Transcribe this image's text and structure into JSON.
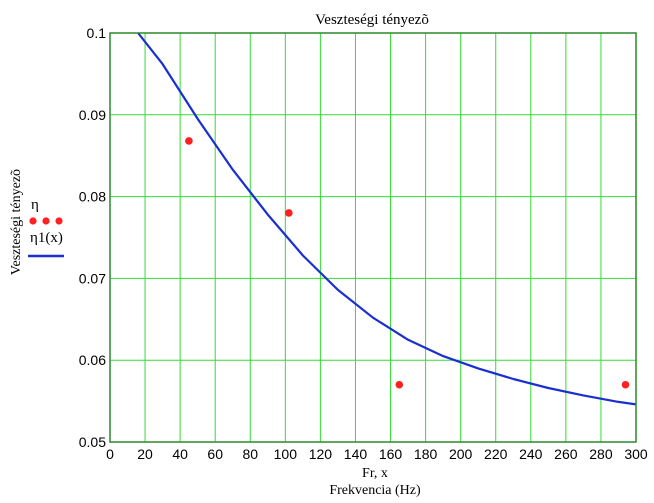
{
  "chart_data": {
    "type": "scatter",
    "title": "Veszteségi tényezõ",
    "ylabel": "Veszteségi tényezõ",
    "xlabel_lines": [
      "Fr, x",
      "Frekvencia (Hz)"
    ],
    "xlim": [
      0,
      300
    ],
    "ylim": [
      0.05,
      0.1
    ],
    "x_ticks": [
      0,
      20,
      40,
      60,
      80,
      100,
      120,
      140,
      160,
      180,
      200,
      220,
      240,
      260,
      280,
      300
    ],
    "x_tick_labels": [
      "0",
      "20",
      "40",
      "60",
      "80",
      "100",
      "120",
      "140",
      "160",
      "180",
      "200",
      "220",
      "240",
      "260",
      "280",
      "300"
    ],
    "y_ticks": [
      0.05,
      0.06,
      0.07,
      0.08,
      0.09,
      0.1
    ],
    "y_tick_labels": [
      "0.05",
      "0.06",
      "0.07",
      "0.08",
      "0.09",
      "0.1"
    ],
    "grid": true,
    "grid_color": "#33dd33",
    "axis_color": "#2a8a2a",
    "legend_position": "left",
    "series": [
      {
        "name": "η",
        "style": "points",
        "color": "#ff2020",
        "x": [
          45,
          102,
          165,
          294
        ],
        "y": [
          0.0868,
          0.078,
          0.057,
          0.057
        ]
      },
      {
        "name": "η1(x)",
        "style": "line",
        "color": "#1a2fd0",
        "x": [
          16,
          30,
          50,
          70,
          90,
          110,
          130,
          150,
          170,
          190,
          210,
          230,
          250,
          270,
          290,
          300
        ],
        "y": [
          0.1,
          0.0962,
          0.0895,
          0.0833,
          0.0778,
          0.0728,
          0.0686,
          0.0652,
          0.0625,
          0.0605,
          0.059,
          0.0577,
          0.0566,
          0.0557,
          0.0549,
          0.0546
        ]
      }
    ]
  }
}
